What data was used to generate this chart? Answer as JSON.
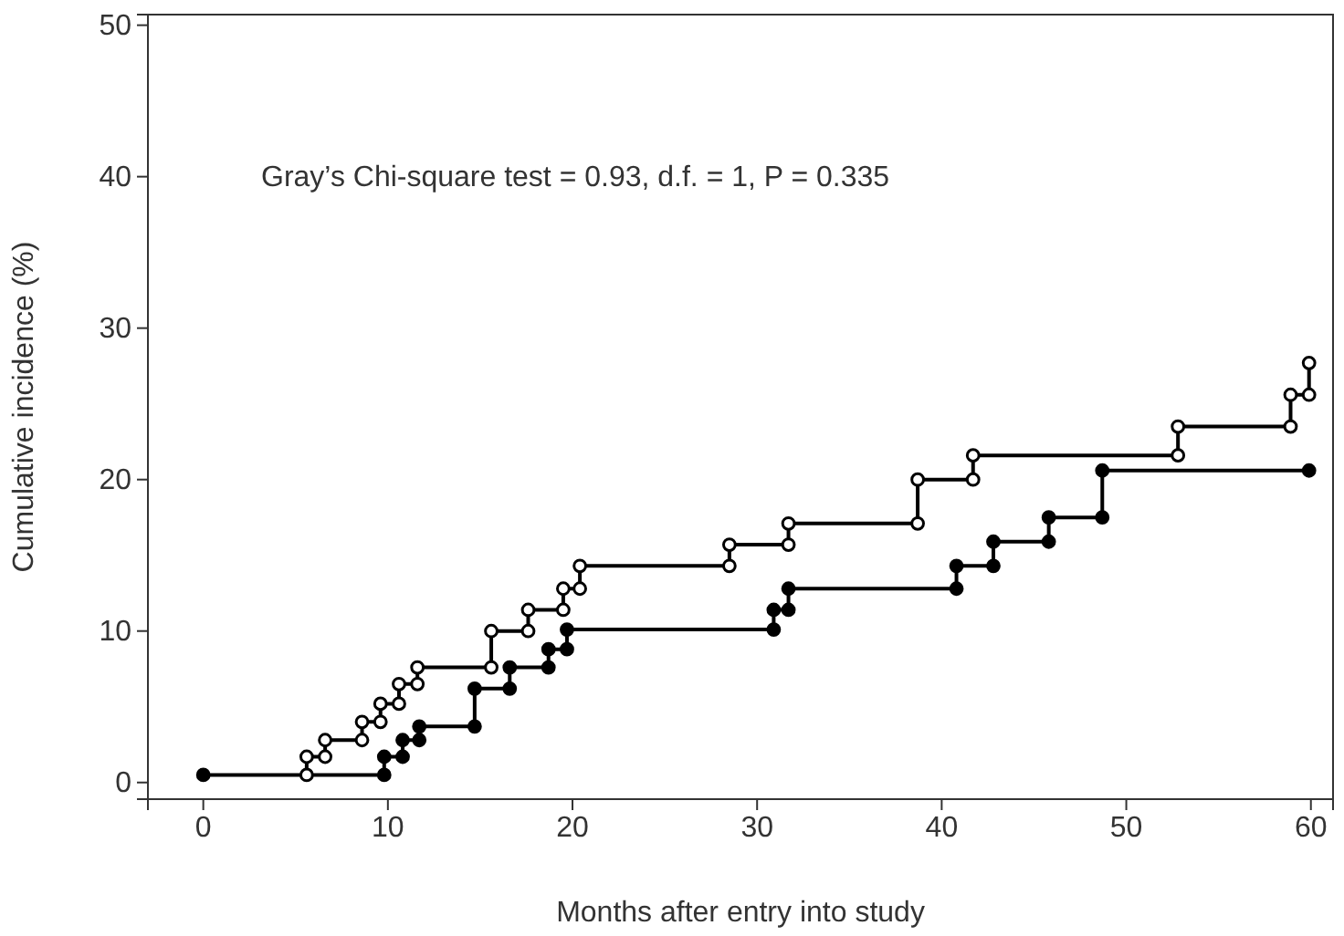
{
  "chart_data": {
    "type": "line",
    "xlabel": "Months after entry into study",
    "ylabel": "Cumulative incidence (%)",
    "xlim": [
      -3,
      61.2
    ],
    "ylim": [
      -1.1,
      50.7
    ],
    "xticks": [
      0,
      10,
      20,
      30,
      40,
      50,
      60
    ],
    "yticks": [
      0,
      10,
      20,
      30,
      40,
      50
    ],
    "grid": false,
    "marker": "circle",
    "line_style": "solid",
    "annotations": [
      "Gray’s Chi-square test = 0.93, d.f. = 1, P = 0.335"
    ],
    "series": [
      {
        "color": "#000000",
        "x": [
          0,
          9.8,
          9.8,
          10.8,
          10.8,
          11.7,
          11.7,
          14.7,
          14.7,
          16.6,
          16.6,
          18.7,
          18.7,
          19.7,
          19.7,
          30.9,
          30.9,
          31.7,
          31.7,
          40.8,
          40.8,
          42.8,
          42.8,
          45.8,
          45.8,
          48.7,
          48.7,
          59.9
        ],
        "values": [
          0.5,
          0.5,
          1.7,
          1.7,
          2.8,
          2.8,
          3.7,
          3.7,
          6.2,
          6.2,
          7.6,
          7.6,
          8.8,
          8.8,
          10.1,
          10.1,
          11.4,
          11.4,
          12.8,
          12.8,
          14.3,
          14.3,
          15.9,
          15.9,
          17.5,
          17.5,
          20.6,
          20.6
        ]
      },
      {
        "color": "#000000",
        "x": [
          5.6,
          5.6,
          6.6,
          6.6,
          8.6,
          8.6,
          9.6,
          9.6,
          10.6,
          10.6,
          11.6,
          11.6,
          15.6,
          15.6,
          17.6,
          17.6,
          19.5,
          19.5,
          20.4,
          20.4,
          28.5,
          28.5,
          31.7,
          31.7,
          38.7,
          38.7,
          41.7,
          41.7,
          52.8,
          52.8,
          58.9,
          58.9,
          59.9,
          59.9
        ],
        "values": [
          0.5,
          1.7,
          1.7,
          2.8,
          2.8,
          4.0,
          4.0,
          5.2,
          5.2,
          6.5,
          6.5,
          7.6,
          7.6,
          10.0,
          10.0,
          11.4,
          11.4,
          12.8,
          12.8,
          14.3,
          14.3,
          15.7,
          15.7,
          17.1,
          17.1,
          20.0,
          20.0,
          21.6,
          21.6,
          23.5,
          23.5,
          25.6,
          25.6,
          27.7
        ]
      }
    ]
  }
}
